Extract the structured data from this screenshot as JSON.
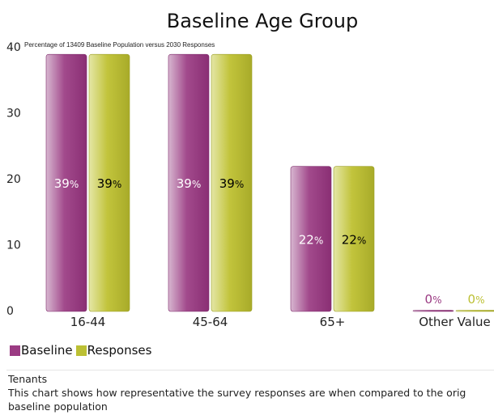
{
  "colors": {
    "baseline": "#9b3b83",
    "responses": "#bcc034"
  },
  "chart_data": {
    "type": "bar",
    "title": "Baseline Age Group",
    "subtitle": "Percentage of 13409 Baseline Population versus 2030 Responses",
    "categories": [
      "16-44",
      "45-64",
      "65+",
      "Other Value"
    ],
    "series": [
      {
        "name": "Baseline",
        "values": [
          39,
          39,
          22,
          0
        ],
        "labels": [
          "39",
          "39",
          "22",
          "0"
        ]
      },
      {
        "name": "Responses",
        "values": [
          39,
          39,
          22,
          0
        ],
        "labels": [
          "39",
          "39",
          "22",
          "0"
        ]
      }
    ],
    "label_unit": "%",
    "ylim": [
      0,
      40
    ],
    "yticks": [
      "0",
      "10",
      "20",
      "30",
      "40"
    ],
    "legend_position": "bottom-left",
    "grid": false
  },
  "footer": {
    "group": "Tenants",
    "description": "This chart shows how representative the survey responses are when compared to the orig",
    "description2": "baseline population"
  }
}
